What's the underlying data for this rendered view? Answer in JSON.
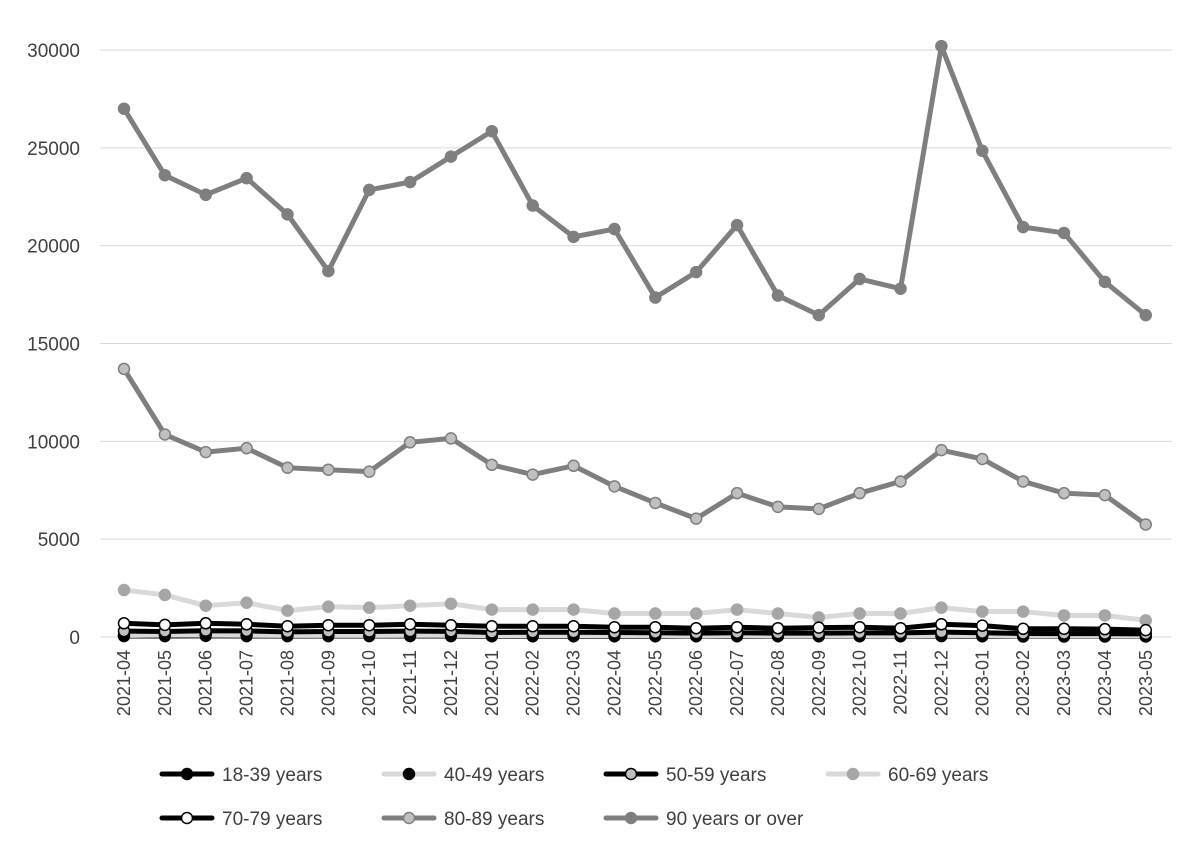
{
  "chart_data": {
    "type": "line",
    "title": "",
    "xlabel": "",
    "ylabel": "",
    "ylim": [
      0,
      30000
    ],
    "yticks": [
      0,
      5000,
      10000,
      15000,
      20000,
      25000,
      30000
    ],
    "grid": "horizontal",
    "legend_position": "bottom",
    "categories": [
      "2021-04",
      "2021-05",
      "2021-06",
      "2021-07",
      "2021-08",
      "2021-09",
      "2021-10",
      "2021-11",
      "2021-12",
      "2022-01",
      "2022-02",
      "2022-03",
      "2022-04",
      "2022-05",
      "2022-06",
      "2022-07",
      "2022-08",
      "2022-09",
      "2022-10",
      "2022-11",
      "2022-12",
      "2023-01",
      "2023-02",
      "2023-03",
      "2023-04",
      "2023-05"
    ],
    "series": [
      {
        "name": "18-39 years",
        "line_color": "#000000",
        "marker_fill": "#000000",
        "marker_stroke": "#000000",
        "values": [
          50,
          50,
          60,
          50,
          50,
          50,
          50,
          50,
          50,
          40,
          40,
          40,
          40,
          40,
          40,
          40,
          40,
          40,
          40,
          40,
          50,
          40,
          30,
          30,
          30,
          30
        ]
      },
      {
        "name": "40-49 years",
        "line_color": "#d9d9d9",
        "marker_fill": "#000000",
        "marker_stroke": "#000000",
        "values": [
          80,
          100,
          100,
          90,
          80,
          80,
          80,
          90,
          90,
          70,
          70,
          70,
          70,
          70,
          60,
          70,
          60,
          60,
          60,
          60,
          80,
          70,
          50,
          50,
          50,
          50
        ]
      },
      {
        "name": "50-59 years",
        "line_color": "#000000",
        "marker_fill": "#c0c0c0",
        "marker_stroke": "#000000",
        "values": [
          300,
          280,
          320,
          310,
          260,
          280,
          280,
          300,
          290,
          230,
          240,
          240,
          230,
          220,
          200,
          220,
          200,
          200,
          210,
          210,
          250,
          220,
          180,
          170,
          170,
          160
        ]
      },
      {
        "name": "60-69 years",
        "line_color": "#d9d9d9",
        "marker_fill": "#a6a6a6",
        "marker_stroke": "#a6a6a6",
        "values": [
          2400,
          2150,
          1600,
          1750,
          1350,
          1550,
          1500,
          1600,
          1700,
          1400,
          1400,
          1400,
          1200,
          1200,
          1200,
          1400,
          1200,
          1000,
          1200,
          1200,
          1500,
          1300,
          1300,
          1100,
          1100,
          850
        ]
      },
      {
        "name": "70-79 years",
        "line_color": "#000000",
        "marker_fill": "#ffffff",
        "marker_stroke": "#000000",
        "values": [
          700,
          620,
          700,
          650,
          550,
          600,
          600,
          650,
          600,
          550,
          550,
          550,
          500,
          500,
          450,
          500,
          450,
          480,
          500,
          450,
          650,
          580,
          420,
          420,
          400,
          350
        ]
      },
      {
        "name": "80-89 years",
        "line_color": "#7f7f7f",
        "marker_fill": "#c0c0c0",
        "marker_stroke": "#7f7f7f",
        "values": [
          13700,
          10350,
          9450,
          9650,
          8650,
          8550,
          8450,
          9950,
          10150,
          8800,
          8300,
          8750,
          7700,
          6850,
          6050,
          7350,
          6650,
          6550,
          7350,
          7950,
          9550,
          9100,
          7950,
          7350,
          7250,
          5750
        ]
      },
      {
        "name": "90 years or over",
        "line_color": "#7f7f7f",
        "marker_fill": "#7f7f7f",
        "marker_stroke": "#7f7f7f",
        "values": [
          27000,
          23600,
          22600,
          23450,
          21600,
          18700,
          22850,
          23250,
          24550,
          25850,
          22050,
          20450,
          20850,
          17350,
          18650,
          21050,
          17450,
          16450,
          18300,
          17800,
          30200,
          24850,
          20950,
          20650,
          18150,
          16450
        ]
      }
    ]
  }
}
